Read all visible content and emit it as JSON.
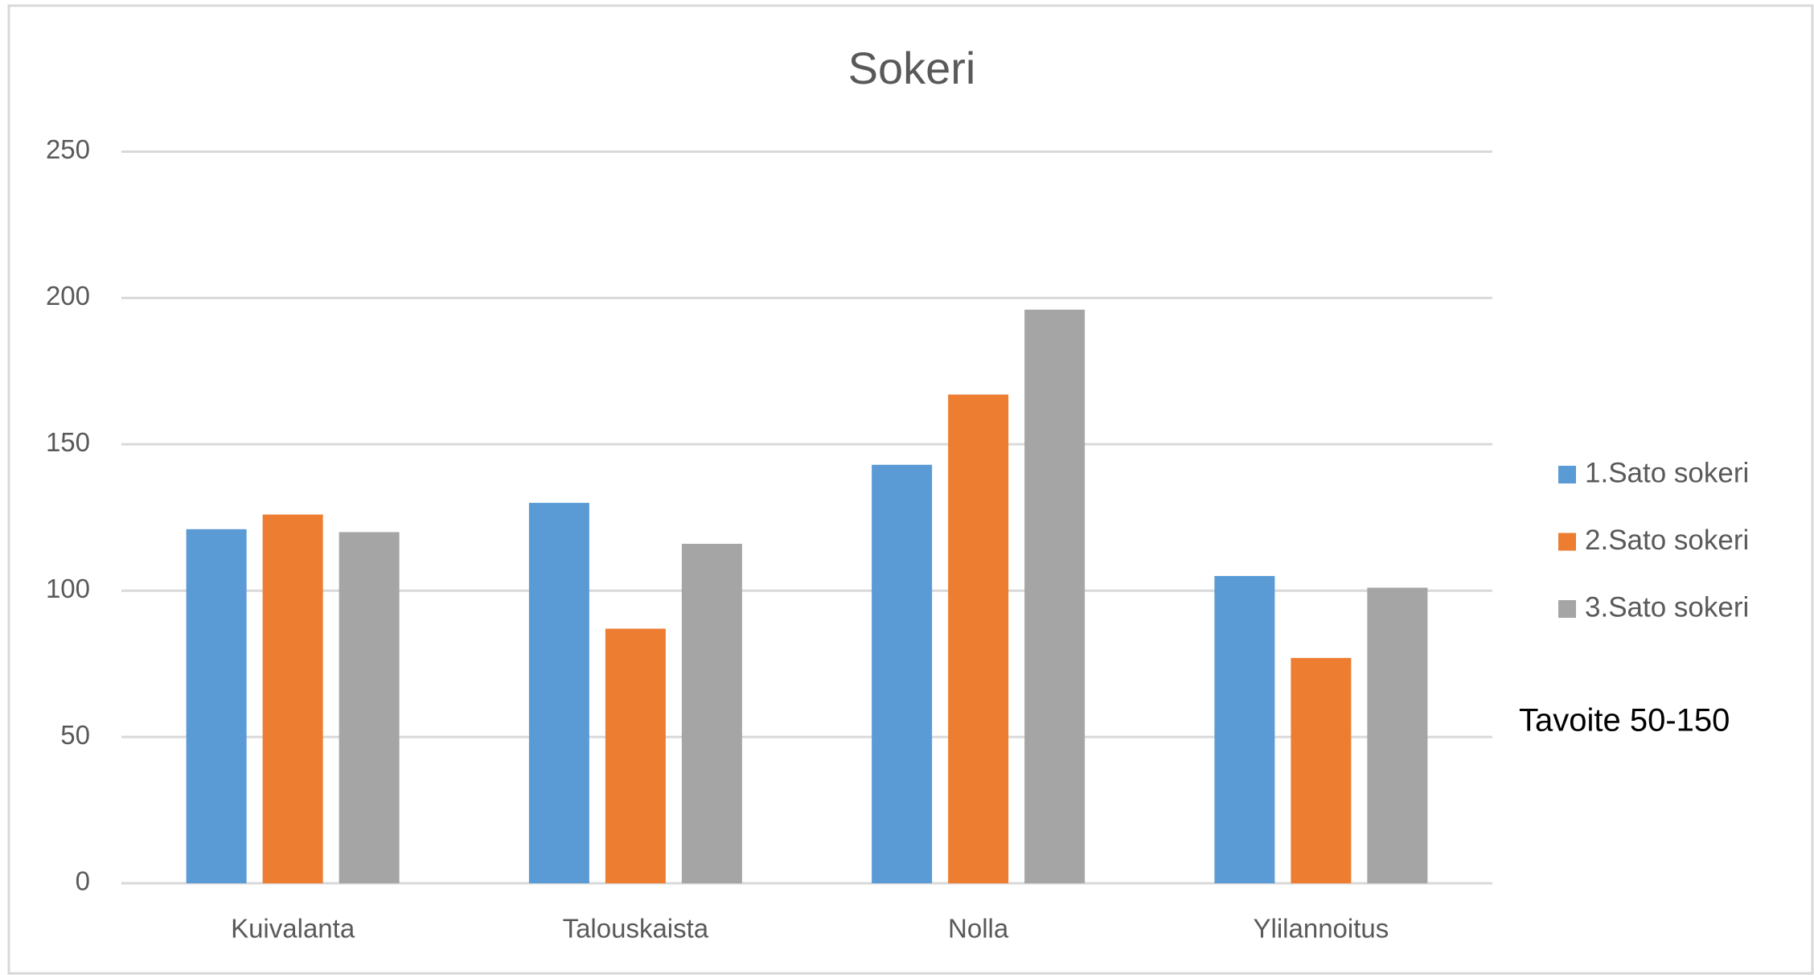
{
  "chart_data": {
    "type": "bar",
    "title": "Sokeri",
    "categories": [
      "Kuivalanta",
      "Talouskaista",
      "Nolla",
      "Ylilannoitus"
    ],
    "series": [
      {
        "name": "1.Sato sokeri",
        "color": "#5b9bd5",
        "values": [
          121,
          130,
          143,
          105
        ]
      },
      {
        "name": "2.Sato sokeri",
        "color": "#ed7d31",
        "values": [
          126,
          87,
          167,
          77
        ]
      },
      {
        "name": "3.Sato sokeri",
        "color": "#a5a5a5",
        "values": [
          120,
          116,
          196,
          101
        ]
      }
    ],
    "ylim": [
      0,
      250
    ],
    "yticks": [
      0,
      50,
      100,
      150,
      200,
      250
    ],
    "grid": true,
    "legend": "right",
    "annotations": [
      "Tavoite 50-150"
    ]
  }
}
